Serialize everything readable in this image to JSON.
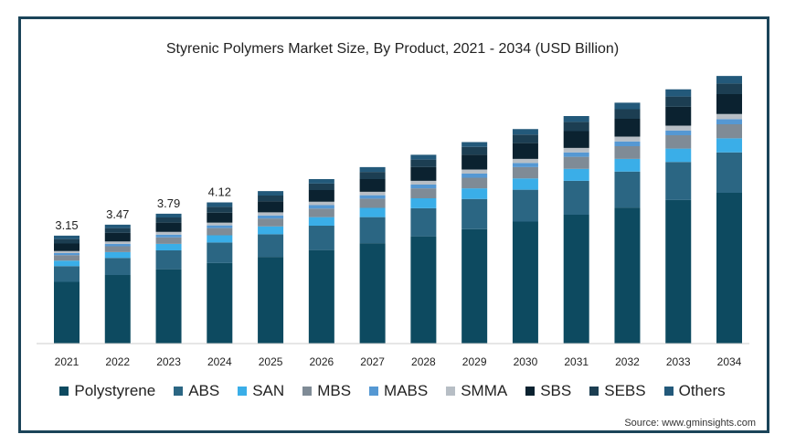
{
  "chart_data": {
    "type": "bar",
    "stacked": true,
    "title": "Styrenic Polymers Market Size, By Product, 2021 - 2034 (USD Billion)",
    "categories": [
      "2021",
      "2022",
      "2023",
      "2024",
      "2025",
      "2026",
      "2027",
      "2028",
      "2029",
      "2030",
      "2031",
      "2032",
      "2033",
      "2034"
    ],
    "totals": [
      3.15,
      3.47,
      3.79,
      4.12,
      4.45,
      4.8,
      5.15,
      5.51,
      5.88,
      6.26,
      6.64,
      7.03,
      7.42,
      7.81
    ],
    "data_labels": [
      "3.15",
      "3.47",
      "3.79",
      "4.12",
      "",
      "",
      "",
      "",
      "",
      "",
      "",
      "",
      "",
      ""
    ],
    "series": [
      {
        "name": "Polystyrene",
        "color": "#0d4a60",
        "values": [
          1.8,
          2.0,
          2.17,
          2.35,
          2.53,
          2.73,
          2.93,
          3.13,
          3.34,
          3.56,
          3.76,
          3.97,
          4.19,
          4.4
        ]
      },
      {
        "name": "ABS",
        "color": "#2b6683",
        "values": [
          0.46,
          0.5,
          0.55,
          0.6,
          0.66,
          0.71,
          0.76,
          0.82,
          0.88,
          0.93,
          0.99,
          1.05,
          1.11,
          1.18
        ]
      },
      {
        "name": "SAN",
        "color": "#3aaee8",
        "values": [
          0.16,
          0.17,
          0.19,
          0.21,
          0.23,
          0.25,
          0.27,
          0.29,
          0.31,
          0.33,
          0.35,
          0.37,
          0.39,
          0.41
        ]
      },
      {
        "name": "MBS",
        "color": "#7f8b96",
        "values": [
          0.16,
          0.17,
          0.19,
          0.21,
          0.23,
          0.25,
          0.27,
          0.29,
          0.31,
          0.33,
          0.35,
          0.37,
          0.39,
          0.41
        ]
      },
      {
        "name": "MABS",
        "color": "#5598d3",
        "values": [
          0.06,
          0.07,
          0.08,
          0.08,
          0.09,
          0.1,
          0.1,
          0.11,
          0.12,
          0.12,
          0.13,
          0.14,
          0.14,
          0.15
        ]
      },
      {
        "name": "SMMA",
        "color": "#b7bec5",
        "values": [
          0.06,
          0.07,
          0.08,
          0.08,
          0.09,
          0.1,
          0.1,
          0.11,
          0.12,
          0.12,
          0.13,
          0.14,
          0.14,
          0.15
        ]
      },
      {
        "name": "SBS",
        "color": "#0b2230",
        "values": [
          0.22,
          0.25,
          0.27,
          0.29,
          0.32,
          0.34,
          0.37,
          0.4,
          0.43,
          0.46,
          0.49,
          0.52,
          0.55,
          0.58
        ]
      },
      {
        "name": "SEBS",
        "color": "#1c3e52",
        "values": [
          0.13,
          0.14,
          0.15,
          0.17,
          0.17,
          0.19,
          0.21,
          0.22,
          0.23,
          0.25,
          0.27,
          0.28,
          0.3,
          0.31
        ]
      },
      {
        "name": "Others",
        "color": "#23597a",
        "values": [
          0.1,
          0.1,
          0.11,
          0.13,
          0.13,
          0.13,
          0.14,
          0.14,
          0.14,
          0.16,
          0.17,
          0.19,
          0.21,
          0.22
        ]
      }
    ],
    "xlabel": "",
    "ylabel": "",
    "ylim": [
      0,
      8
    ],
    "grid": false,
    "legend_position": "bottom",
    "source": "Source: www.gminsights.com"
  }
}
